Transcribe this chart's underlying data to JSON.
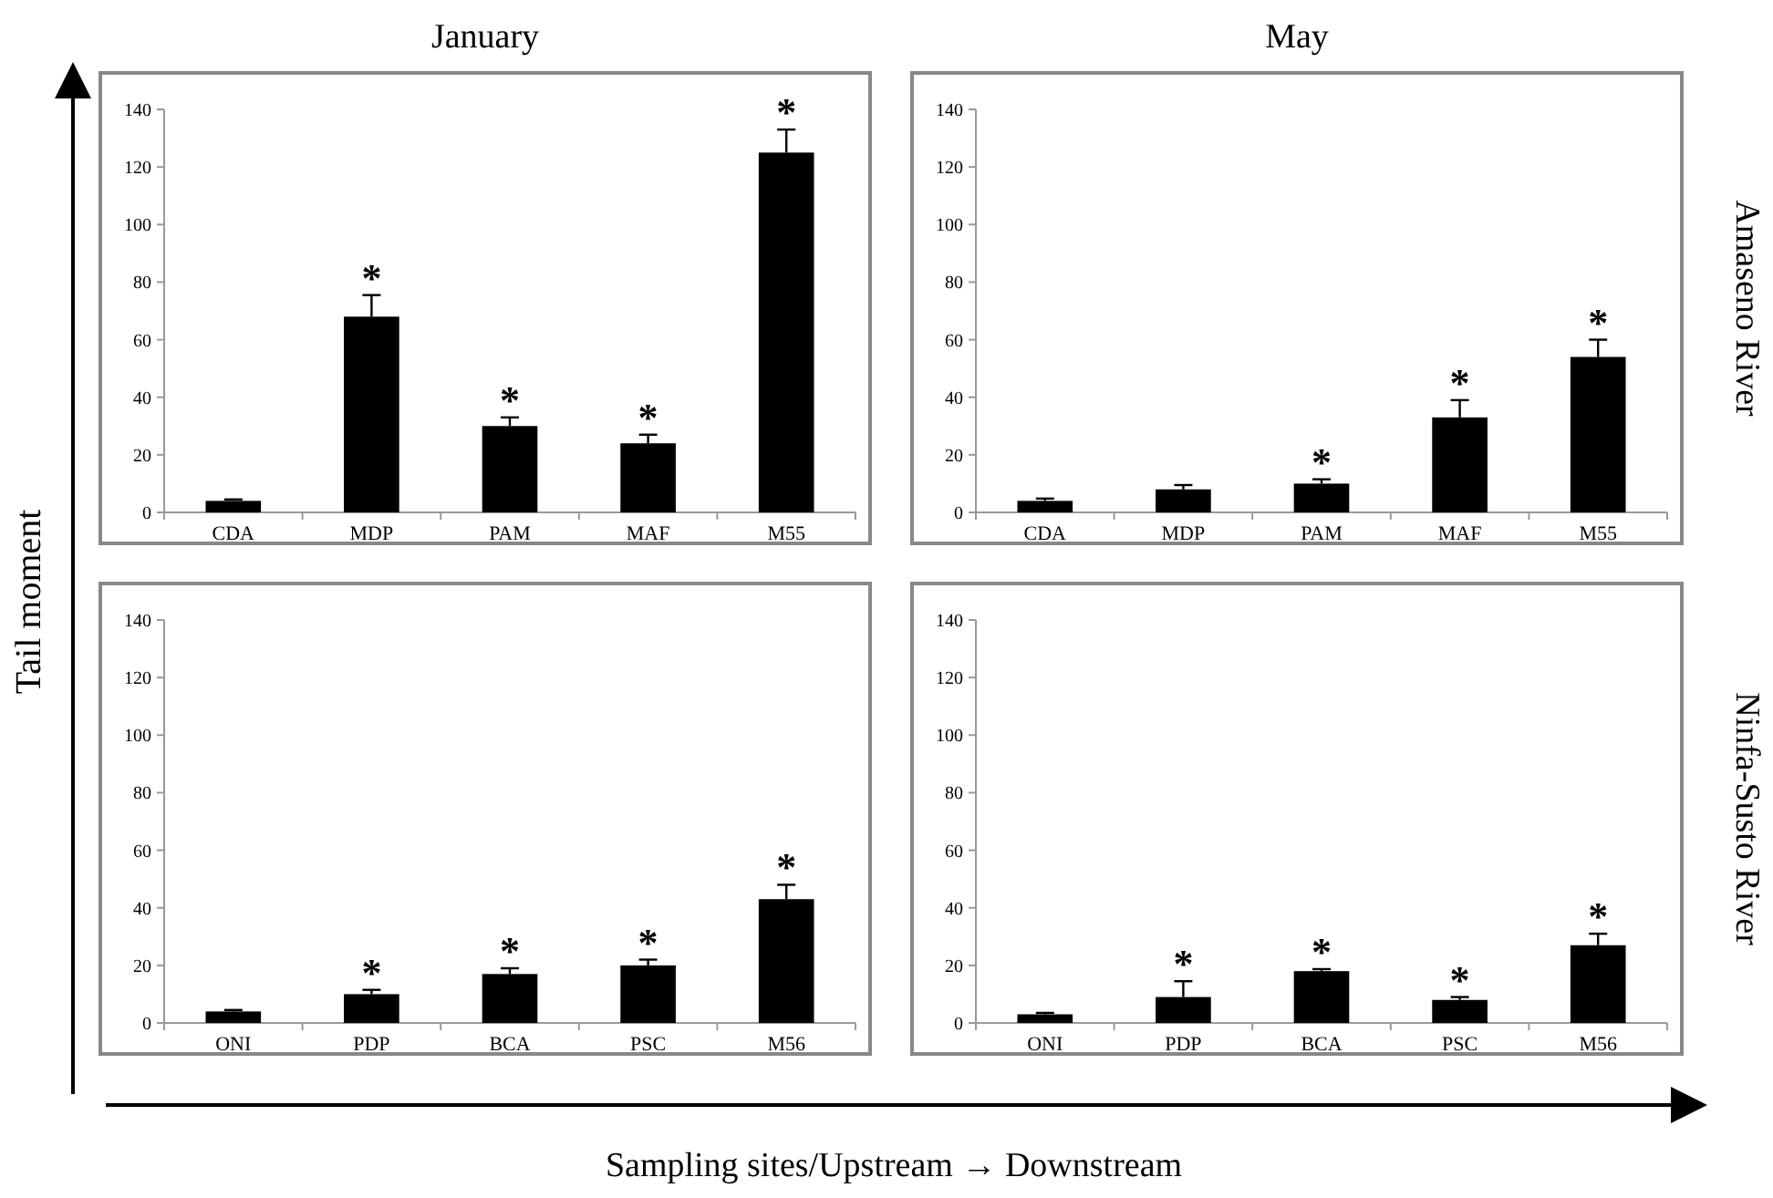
{
  "chart_data": [
    {
      "type": "bar",
      "title": "January",
      "ylabel": "Tail moment",
      "categories": [
        "CDA",
        "MDP",
        "PAM",
        "MAF",
        "M55"
      ],
      "values": [
        4,
        68,
        30,
        24,
        125
      ],
      "errors": [
        [
          4,
          4.5
        ],
        [
          68,
          75.5
        ],
        [
          30,
          33
        ],
        [
          24,
          27
        ],
        [
          125,
          133
        ]
      ],
      "color": "#000000",
      "ylim": [
        0,
        140
      ],
      "yticks": [
        0,
        20,
        40,
        60,
        80,
        100,
        120,
        140
      ],
      "grid": false,
      "annotations": [
        {
          "text": "*",
          "x": "MDP",
          "y": 75.5
        },
        {
          "text": "*",
          "x": "PAM",
          "y": 33
        },
        {
          "text": "*",
          "x": "MAF",
          "y": 27
        },
        {
          "text": "*",
          "x": "M55",
          "y": 133
        }
      ]
    },
    {
      "type": "bar",
      "title": "May",
      "y2label": "Amaseno River",
      "categories": [
        "CDA",
        "MDP",
        "PAM",
        "MAF",
        "M55"
      ],
      "values": [
        4,
        8,
        10,
        33,
        54
      ],
      "errors": [
        [
          4,
          4.8
        ],
        [
          8,
          9.5
        ],
        [
          10,
          11.5
        ],
        [
          33,
          39
        ],
        [
          54,
          60
        ]
      ],
      "color": "#000000",
      "ylim": [
        0,
        140
      ],
      "yticks": [
        0,
        20,
        40,
        60,
        80,
        100,
        120,
        140
      ],
      "grid": false,
      "annotations": [
        {
          "text": "*",
          "x": "PAM",
          "y": 11.5
        },
        {
          "text": "*",
          "x": "MAF",
          "y": 39
        },
        {
          "text": "*",
          "x": "M55",
          "y": 60
        }
      ]
    },
    {
      "type": "bar",
      "xlabel": "Sampling sites/Upstream → Downstream",
      "categories": [
        "ONI",
        "PDP",
        "BCA",
        "PSC",
        "M56"
      ],
      "values": [
        4,
        10,
        17,
        20,
        43
      ],
      "errors": [
        [
          4,
          4.5
        ],
        [
          10,
          11.5
        ],
        [
          17,
          19
        ],
        [
          20,
          22
        ],
        [
          43,
          48
        ]
      ],
      "color": "#000000",
      "ylim": [
        0,
        140
      ],
      "yticks": [
        0,
        20,
        40,
        60,
        80,
        100,
        120,
        140
      ],
      "grid": false,
      "annotations": [
        {
          "text": "*",
          "x": "PDP",
          "y": 11.5
        },
        {
          "text": "*",
          "x": "BCA",
          "y": 19
        },
        {
          "text": "*",
          "x": "PSC",
          "y": 22
        },
        {
          "text": "*",
          "x": "M56",
          "y": 48
        }
      ]
    },
    {
      "type": "bar",
      "y2label": "Ninfa-Susto River",
      "categories": [
        "ONI",
        "PDP",
        "BCA",
        "PSC",
        "M56"
      ],
      "values": [
        3,
        9,
        18,
        8,
        27
      ],
      "errors": [
        [
          3,
          3.5
        ],
        [
          9,
          14.5
        ],
        [
          18,
          18.7
        ],
        [
          8,
          9
        ],
        [
          27,
          31
        ]
      ],
      "color": "#000000",
      "ylim": [
        0,
        140
      ],
      "yticks": [
        0,
        20,
        40,
        60,
        80,
        100,
        120,
        140
      ],
      "grid": false,
      "annotations": [
        {
          "text": "*",
          "x": "PDP",
          "y": 14.5
        },
        {
          "text": "*",
          "x": "BCA",
          "y": 18.7
        },
        {
          "text": "*",
          "x": "PSC",
          "y": 9
        },
        {
          "text": "*",
          "x": "M56",
          "y": 31
        }
      ]
    }
  ]
}
